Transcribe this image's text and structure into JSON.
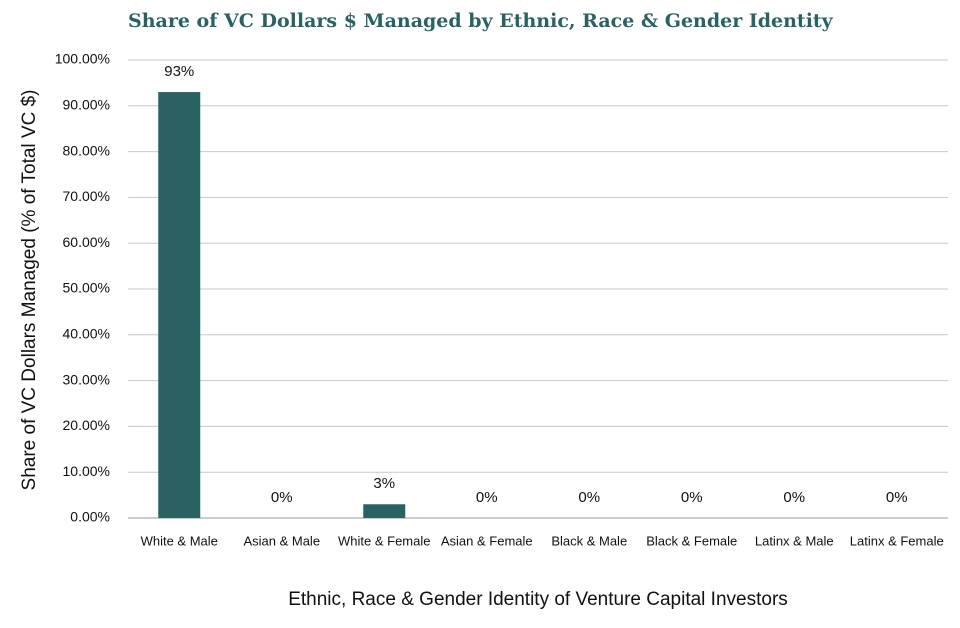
{
  "chart_data": {
    "type": "bar",
    "title": "Share of VC Dollars $ Managed by Ethnic, Race & Gender Identity",
    "x_label": "Ethnic, Race & Gender Identity of Venture Capital Investors",
    "y_label": "Share of  VC Dollars Managed (% of Total VC $)",
    "categories": [
      "White & Male",
      "Asian & Male",
      "White & Female",
      "Asian & Female",
      "Black & Male",
      "Black & Female",
      "Latinx & Male",
      "Latinx & Female"
    ],
    "values": [
      93,
      0,
      3,
      0,
      0,
      0,
      0,
      0
    ],
    "value_labels": [
      "93%",
      "0%",
      "3%",
      "0%",
      "0%",
      "0%",
      "0%",
      "0%"
    ],
    "color": "#2a6163",
    "ylim": [
      0,
      100
    ],
    "yticks": [
      {
        "value": 0,
        "label": "0.00%"
      },
      {
        "value": 10,
        "label": "10.00%"
      },
      {
        "value": 20,
        "label": "20.00%"
      },
      {
        "value": 30,
        "label": "30.00%"
      },
      {
        "value": 40,
        "label": "40.00%"
      },
      {
        "value": 50,
        "label": "50.00%"
      },
      {
        "value": 60,
        "label": "60.00%"
      },
      {
        "value": 70,
        "label": "70.00%"
      },
      {
        "value": 80,
        "label": "80.00%"
      },
      {
        "value": 90,
        "label": "90.00%"
      },
      {
        "value": 100,
        "label": "100.00%"
      }
    ],
    "grid": true
  }
}
